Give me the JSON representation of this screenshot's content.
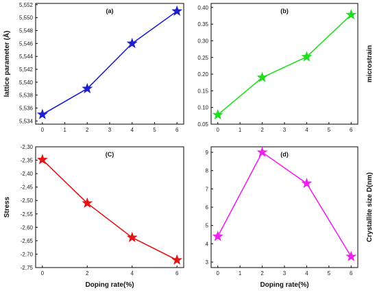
{
  "chart_data": [
    {
      "type": "line",
      "panel_label": "(a)",
      "x": [
        0,
        2,
        4,
        6
      ],
      "series": [
        {
          "values": [
            5.535,
            5.539,
            5.546,
            5.551
          ],
          "color": "#1f1fcc",
          "marker": "star"
        }
      ],
      "xlabel": "",
      "ylabel": "lattice parameter (Å)",
      "ylabel_side": "left",
      "xlim": [
        -0.3,
        6.3
      ],
      "ylim": [
        5.5335,
        5.5522
      ],
      "xticks": [
        0,
        1,
        2,
        3,
        4,
        5,
        6
      ],
      "xtick_labels": [
        "0",
        "1",
        "2",
        "3",
        "4",
        "5",
        "6"
      ],
      "yticks": [
        5.534,
        5.536,
        5.538,
        5.54,
        5.542,
        5.544,
        5.546,
        5.548,
        5.55,
        5.552
      ],
      "ytick_labels": [
        "5,534",
        "5,536",
        "5,538",
        "5,540",
        "5,542",
        "5,544",
        "5,546",
        "5,548",
        "5,550",
        "5,552"
      ]
    },
    {
      "type": "line",
      "panel_label": "(b)",
      "x": [
        0,
        2,
        4,
        6
      ],
      "series": [
        {
          "values": [
            0.078,
            0.19,
            0.252,
            0.378
          ],
          "color": "#22dd22",
          "marker": "star"
        }
      ],
      "xlabel": "",
      "ylabel": "microstrain",
      "ylabel_side": "right",
      "xlim": [
        -0.3,
        6.3
      ],
      "ylim": [
        0.05,
        0.412
      ],
      "xticks": [
        0,
        1,
        2,
        3,
        4,
        5,
        6
      ],
      "xtick_labels": [
        "0",
        "1",
        "2",
        "3",
        "4",
        "5",
        "6"
      ],
      "yticks": [
        0.05,
        0.1,
        0.15,
        0.2,
        0.25,
        0.3,
        0.35,
        0.4
      ],
      "ytick_labels": [
        "0.05",
        "0.10",
        "0.15",
        "0.20",
        "0.25",
        "0.30",
        "0.35",
        "0.40"
      ]
    },
    {
      "type": "line",
      "panel_label": "(C)",
      "x": [
        0,
        2,
        4,
        6
      ],
      "series": [
        {
          "values": [
            -2.348,
            -2.51,
            -2.638,
            -2.722
          ],
          "color": "#e01515",
          "marker": "star"
        }
      ],
      "xlabel": "Doping rate(%)",
      "ylabel": "Stress",
      "ylabel_side": "left",
      "xlim": [
        -0.3,
        6.3
      ],
      "ylim": [
        -2.75,
        -2.3
      ],
      "xticks": [
        0,
        2,
        4,
        6
      ],
      "xtick_labels": [
        "0",
        "2",
        "4",
        "6"
      ],
      "yticks": [
        -2.75,
        -2.7,
        -2.65,
        -2.6,
        -2.55,
        -2.5,
        -2.45,
        -2.4,
        -2.35,
        -2.3
      ],
      "ytick_labels": [
        "-2,75",
        "-2,70",
        "-2,65",
        "-2,60",
        "-2,55",
        "-2,50",
        "-2,45",
        "-2,40",
        "-2,35",
        "-2,30"
      ]
    },
    {
      "type": "line",
      "panel_label": "(d)",
      "x": [
        0,
        2,
        4,
        6
      ],
      "series": [
        {
          "values": [
            4.4,
            9.0,
            7.3,
            3.3
          ],
          "color": "#ee22ee",
          "marker": "star"
        }
      ],
      "xlabel": "Doping rate(%)",
      "ylabel": "Crystallite size D(nm)",
      "ylabel_side": "right",
      "xlim": [
        -0.3,
        6.3
      ],
      "ylim": [
        2.7,
        9.3
      ],
      "xticks": [
        0,
        1,
        2,
        3,
        4,
        5,
        6
      ],
      "xtick_labels": [
        "0",
        "1",
        "2",
        "3",
        "4",
        "5",
        "6"
      ],
      "yticks": [
        3,
        4,
        5,
        6,
        7,
        8,
        9
      ],
      "ytick_labels": [
        "3",
        "4",
        "5",
        "6",
        "7",
        "8",
        "9"
      ]
    }
  ]
}
